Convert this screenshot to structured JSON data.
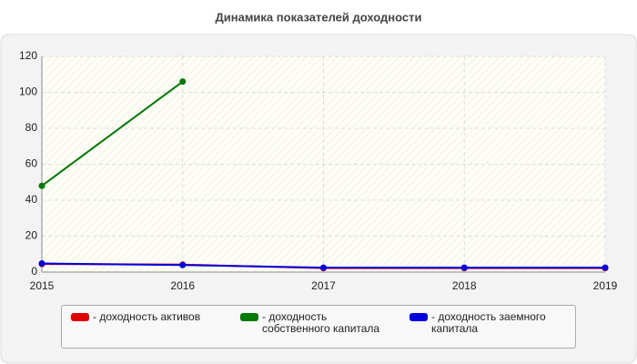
{
  "chart_data": {
    "type": "line",
    "title": "Динамика показателей доходности",
    "x": [
      2015,
      2016,
      2017,
      2018,
      2019
    ],
    "series": [
      {
        "name": "- доходность активов",
        "color": "#e00000",
        "values": [
          4.5,
          4.2,
          2.2,
          2.2,
          2.2
        ]
      },
      {
        "name": "- доходность собственного капитала",
        "color": "#007a00",
        "values": [
          48,
          106,
          null,
          null,
          null
        ]
      },
      {
        "name": "- доходность заемного капитала",
        "color": "#0000e0",
        "values": [
          4.8,
          3.9,
          2.5,
          2.5,
          2.5
        ]
      }
    ],
    "xlim": [
      2015,
      2019
    ],
    "xticks": [
      2015,
      2016,
      2017,
      2018,
      2019
    ],
    "ylim": [
      0,
      120
    ],
    "yticks": [
      0,
      20,
      40,
      60,
      80,
      100,
      120
    ],
    "grid": true
  }
}
